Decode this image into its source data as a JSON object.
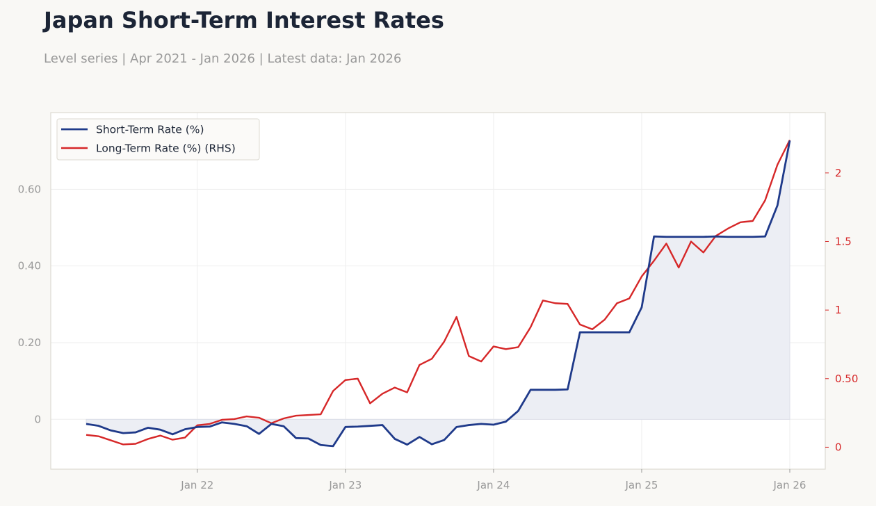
{
  "title": "Japan Short-Term Interest Rates",
  "subtitle": "Level series | Apr 2021 - Jan 2026 | Latest data: Jan 2026",
  "colors": {
    "short": "#1f3a8a",
    "long": "#d62728",
    "fill": "#eceef4",
    "axis_text": "#999999",
    "grid": "#eeeeee",
    "frame": "#dcdad2"
  },
  "chart_data": {
    "type": "line",
    "x_start": "2021-04",
    "x_end": "2026-01",
    "x_ticks": [
      {
        "label": "Jan 22",
        "date": "2022-01"
      },
      {
        "label": "Jan 23",
        "date": "2023-01"
      },
      {
        "label": "Jan 24",
        "date": "2024-01"
      },
      {
        "label": "Jan 25",
        "date": "2025-01"
      },
      {
        "label": "Jan 26",
        "date": "2026-01"
      }
    ],
    "y_left": {
      "lim": [
        -0.13,
        0.8
      ],
      "ticks": [
        {
          "value": 0,
          "label": "0"
        },
        {
          "value": 0.2,
          "label": "0.20"
        },
        {
          "value": 0.4,
          "label": "0.40"
        },
        {
          "value": 0.6,
          "label": "0.60"
        }
      ]
    },
    "y_right": {
      "lim": [
        -0.16,
        2.44
      ],
      "ticks": [
        {
          "value": 0,
          "label": "0"
        },
        {
          "value": 0.5,
          "label": "0.50"
        },
        {
          "value": 1,
          "label": "1"
        },
        {
          "value": 1.5,
          "label": "1.5"
        },
        {
          "value": 2,
          "label": "2"
        }
      ]
    },
    "legend_position": "top-left",
    "grid": true,
    "series": [
      {
        "name": "Short-Term Rate (%)",
        "axis": "left",
        "fill_to_zero": true,
        "values": [
          -0.012,
          -0.017,
          -0.029,
          -0.036,
          -0.034,
          -0.022,
          -0.027,
          -0.039,
          -0.026,
          -0.02,
          -0.019,
          -0.008,
          -0.012,
          -0.018,
          -0.038,
          -0.012,
          -0.018,
          -0.049,
          -0.05,
          -0.067,
          -0.07,
          -0.02,
          -0.019,
          -0.017,
          -0.015,
          -0.051,
          -0.066,
          -0.046,
          -0.065,
          -0.054,
          -0.02,
          -0.015,
          -0.012,
          -0.014,
          -0.006,
          0.022,
          0.077,
          0.077,
          0.077,
          0.078,
          0.227,
          0.227,
          0.227,
          0.227,
          0.227,
          0.292,
          0.477,
          0.476,
          0.476,
          0.476,
          0.476,
          0.477,
          0.476,
          0.476,
          0.476,
          0.477,
          0.558,
          0.727
        ]
      },
      {
        "name": "Long-Term Rate (%) (RHS)",
        "axis": "right",
        "values": [
          0.09,
          0.08,
          0.05,
          0.02,
          0.025,
          0.06,
          0.085,
          0.055,
          0.07,
          0.16,
          0.17,
          0.2,
          0.205,
          0.225,
          0.215,
          0.175,
          0.21,
          0.23,
          0.235,
          0.24,
          0.41,
          0.49,
          0.5,
          0.32,
          0.39,
          0.435,
          0.4,
          0.6,
          0.645,
          0.77,
          0.95,
          0.665,
          0.625,
          0.735,
          0.715,
          0.73,
          0.875,
          1.07,
          1.05,
          1.045,
          0.895,
          0.86,
          0.93,
          1.05,
          1.085,
          1.245,
          1.36,
          1.485,
          1.31,
          1.5,
          1.42,
          1.54,
          1.595,
          1.64,
          1.65,
          1.8,
          2.06,
          2.24
        ]
      }
    ]
  }
}
